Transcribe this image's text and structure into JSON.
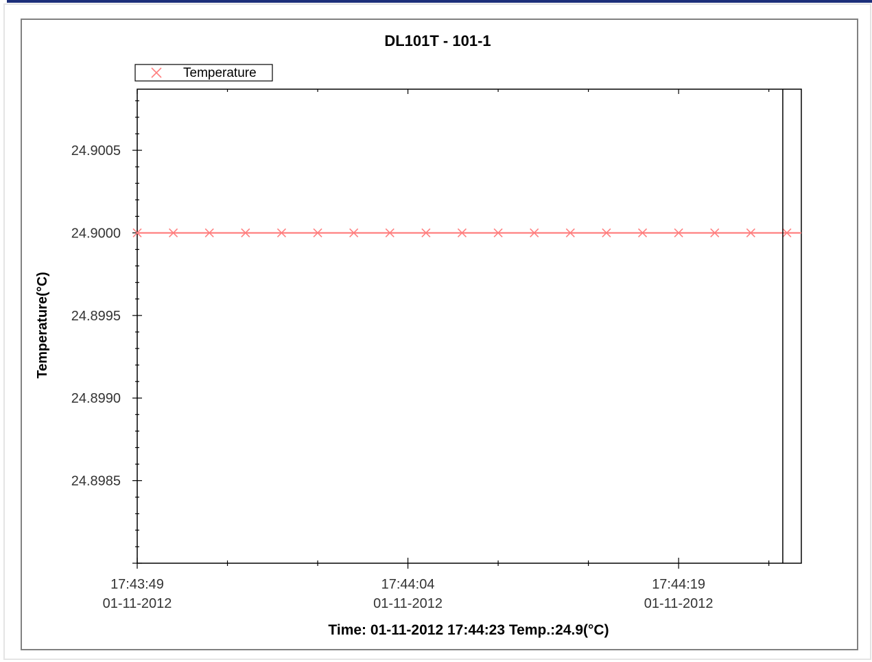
{
  "window": {
    "title": "DL101T - 101-1",
    "status_readout": "Time: 01-11-2012 17:44:23 Temp.:24.9(°C)"
  },
  "colors": {
    "series": "#ff7f7f",
    "axis": "#000000",
    "frame": "#808080",
    "top_bar": "#1c2f7a"
  },
  "chart_data": {
    "type": "line",
    "title": "DL101T - 101-1",
    "xlabel": "",
    "ylabel": "Temperature(°C)",
    "legend": {
      "entries": [
        "Temperature"
      ],
      "position": "top-left"
    },
    "grid": false,
    "x_ticks": [
      {
        "time": "17:43:49",
        "date": "01-11-2012",
        "seconds": 0
      },
      {
        "time": "17:44:04",
        "date": "01-11-2012",
        "seconds": 15
      },
      {
        "time": "17:44:19",
        "date": "01-11-2012",
        "seconds": 30
      }
    ],
    "xlim_seconds": [
      0,
      36.8
    ],
    "cursor_seconds": 36,
    "ylim": [
      24.898,
      24.90087
    ],
    "y_ticks": [
      "24.9005",
      "24.9000",
      "24.8995",
      "24.8990",
      "24.8985"
    ],
    "series": [
      {
        "name": "Temperature",
        "marker": "x",
        "x_seconds": [
          0,
          2,
          4,
          6,
          8,
          10,
          12,
          14,
          16,
          18,
          20,
          22,
          24,
          26,
          28,
          30,
          32,
          34,
          36
        ],
        "values": [
          24.9,
          24.9,
          24.9,
          24.9,
          24.9,
          24.9,
          24.9,
          24.9,
          24.9,
          24.9,
          24.9,
          24.9,
          24.9,
          24.9,
          24.9,
          24.9,
          24.9,
          24.9,
          24.9
        ]
      }
    ]
  }
}
